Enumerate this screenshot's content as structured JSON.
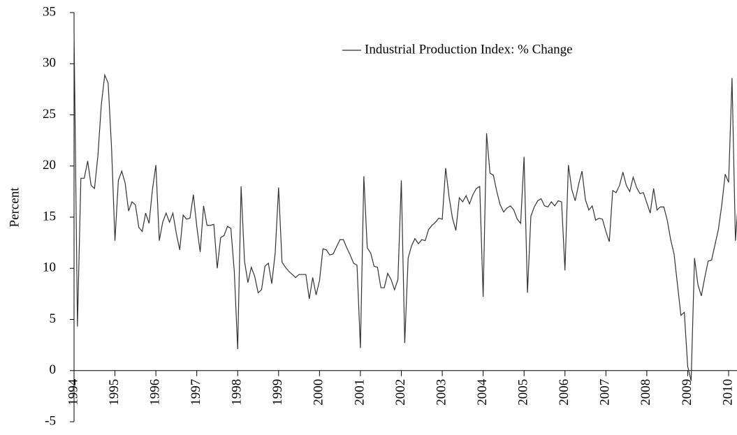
{
  "chart_data": {
    "type": "line",
    "y_label": "Percent",
    "categories": [
      "1994",
      null,
      null,
      null,
      null,
      null,
      null,
      null,
      null,
      null,
      null,
      null,
      "1995",
      null,
      null,
      null,
      null,
      null,
      null,
      null,
      null,
      null,
      null,
      null,
      "1996",
      null,
      null,
      null,
      null,
      null,
      null,
      null,
      null,
      null,
      null,
      null,
      "1997",
      null,
      null,
      null,
      null,
      null,
      null,
      null,
      null,
      null,
      null,
      null,
      "1998",
      null,
      null,
      null,
      null,
      null,
      null,
      null,
      null,
      null,
      null,
      null,
      "1999",
      null,
      null,
      null,
      null,
      null,
      null,
      null,
      null,
      null,
      null,
      null,
      "2000",
      null,
      null,
      null,
      null,
      null,
      null,
      null,
      null,
      null,
      null,
      null,
      "2001",
      null,
      null,
      null,
      null,
      null,
      null,
      null,
      null,
      null,
      null,
      null,
      "2002",
      null,
      null,
      null,
      null,
      null,
      null,
      null,
      null,
      null,
      null,
      null,
      "2003",
      null,
      null,
      null,
      null,
      null,
      null,
      null,
      null,
      null,
      null,
      null,
      "2004",
      null,
      null,
      null,
      null,
      null,
      null,
      null,
      null,
      null,
      null,
      null,
      "2005",
      null,
      null,
      null,
      null,
      null,
      null,
      null,
      null,
      null,
      null,
      null,
      "2006",
      null,
      null,
      null,
      null,
      null,
      null,
      null,
      null,
      null,
      null,
      null,
      "2007",
      null,
      null,
      null,
      null,
      null,
      null,
      null,
      null,
      null,
      null,
      null,
      "2008",
      null,
      null,
      null,
      null,
      null,
      null,
      null,
      null,
      null,
      null,
      null,
      "2009",
      null,
      null,
      null,
      null,
      null,
      null,
      null,
      null,
      null,
      null,
      null,
      "2010",
      null,
      null,
      null
    ],
    "series": [
      {
        "name": "Industrial Production Index: % Change",
        "color": "#333333",
        "values": [
          33.2,
          4.3,
          18.8,
          18.8,
          20.5,
          18.1,
          17.8,
          21,
          26,
          28.9,
          28.1,
          21.8,
          12.7,
          18.6,
          19.5,
          18.3,
          15.6,
          16.5,
          16.2,
          14,
          13.6,
          15.4,
          14.4,
          17.7,
          20.1,
          12.7,
          14.5,
          15.4,
          14.5,
          15.4,
          13.4,
          11.8,
          15.2,
          14.8,
          14.9,
          17.2,
          14.1,
          11.6,
          16.1,
          14.2,
          14.2,
          14.3,
          10,
          13,
          13.2,
          14.1,
          13.9,
          9.7,
          2.1,
          18,
          10.7,
          8.6,
          10.1,
          9.2,
          7.6,
          7.9,
          10.2,
          10.5,
          8.5,
          11.5,
          17.9,
          10.6,
          10.1,
          9.7,
          9.4,
          9.1,
          9.4,
          9.4,
          9.4,
          7,
          9.1,
          7.4,
          8.8,
          11.9,
          11.8,
          11.3,
          11.4,
          12.1,
          12.8,
          12.8,
          12,
          11.3,
          10.5,
          10.3,
          2.2,
          19,
          12,
          11.5,
          10.2,
          10.1,
          8.1,
          8.1,
          9.5,
          8.9,
          7.9,
          8.9,
          18.6,
          2.7,
          11,
          12.2,
          12.9,
          12.4,
          12.8,
          12.7,
          13.8,
          14.2,
          14.5,
          14.9,
          14.8,
          19.8,
          17,
          14.9,
          13.7,
          16.9,
          16.5,
          17.1,
          16.3,
          17.2,
          17.8,
          18,
          7.2,
          23.2,
          19.3,
          19.1,
          17.5,
          16.2,
          15.5,
          15.9,
          16.1,
          15.7,
          14.8,
          14.4,
          20.9,
          7.6,
          15.1,
          16,
          16.6,
          16.8,
          16.1,
          16,
          16.5,
          16.1,
          16.6,
          16.5,
          9.8,
          20.1,
          17.7,
          16.6,
          18.2,
          19.5,
          16.7,
          15.7,
          16.1,
          14.7,
          14.9,
          14.8,
          13.6,
          12.6,
          17.6,
          17.4,
          18.1,
          19.4,
          18.1,
          17.5,
          18.9,
          17.9,
          17.3,
          17.4,
          16.4,
          15.4,
          17.8,
          15.7,
          16,
          16,
          14.7,
          12.8,
          11.4,
          8.4,
          5.4,
          5.7,
          0.4,
          -1,
          11,
          8.4,
          7.3,
          9.1,
          10.7,
          10.8,
          12.3,
          13.8,
          16.2,
          19.2,
          18.4,
          28.6,
          12.7,
          17.5
        ]
      }
    ],
    "ylim": [
      -5,
      35
    ],
    "yticks": [
      -5,
      0,
      5,
      10,
      15,
      20,
      25,
      30,
      35
    ],
    "legend": "top-right"
  }
}
